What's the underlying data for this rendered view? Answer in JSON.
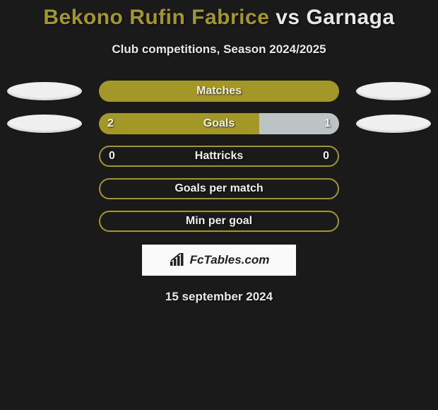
{
  "title": {
    "left_name": "Bekono Rufin Fabrice",
    "vs": " vs ",
    "right_name": "Garnaga",
    "left_color": "#a39728",
    "right_color": "#e8e8e8"
  },
  "subtitle": "Club competitions, Season 2024/2025",
  "theme": {
    "background": "#1a1a1a",
    "left_player_color": "#a39728",
    "right_player_color": "#bcc3c5",
    "bar_border_color": "#a39728",
    "oval_color": "#f0f0f0",
    "text_color": "#e8e8e8"
  },
  "stats": [
    {
      "label": "Matches",
      "left_value": "",
      "right_value": "",
      "left_fill_pct": 100,
      "right_fill_pct": 0,
      "show_ovals": true,
      "mode": "filled"
    },
    {
      "label": "Goals",
      "left_value": "2",
      "right_value": "1",
      "left_fill_pct": 66.7,
      "right_fill_pct": 33.3,
      "show_ovals": true,
      "mode": "filled"
    },
    {
      "label": "Hattricks",
      "left_value": "0",
      "right_value": "0",
      "left_fill_pct": 0,
      "right_fill_pct": 0,
      "show_ovals": false,
      "mode": "border"
    },
    {
      "label": "Goals per match",
      "left_value": "",
      "right_value": "",
      "left_fill_pct": 0,
      "right_fill_pct": 0,
      "show_ovals": false,
      "mode": "border"
    },
    {
      "label": "Min per goal",
      "left_value": "",
      "right_value": "",
      "left_fill_pct": 0,
      "right_fill_pct": 0,
      "show_ovals": false,
      "mode": "border"
    }
  ],
  "logo": {
    "text": "FcTables.com",
    "background": "#fafafa",
    "text_color": "#222222",
    "icon_color": "#222222"
  },
  "date": "15 september 2024"
}
